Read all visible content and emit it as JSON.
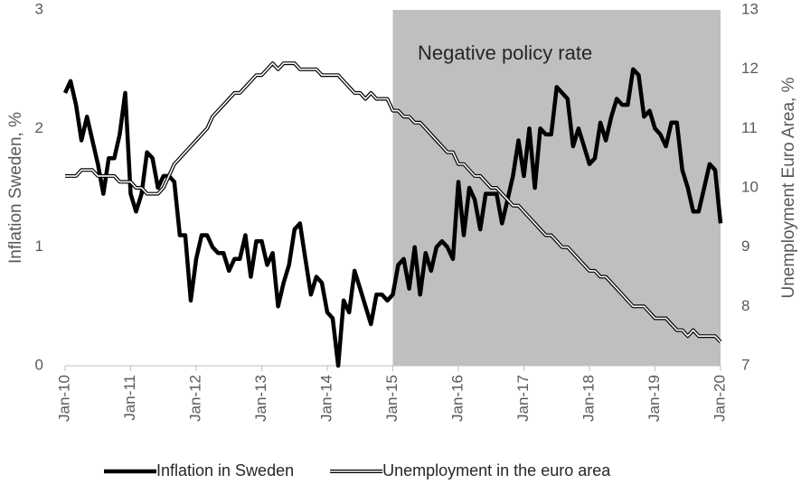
{
  "chart_data": {
    "type": "line",
    "categories": [
      "Jan-10",
      null,
      null,
      null,
      null,
      null,
      null,
      null,
      null,
      null,
      null,
      null,
      "Jan-11",
      null,
      null,
      null,
      null,
      null,
      null,
      null,
      null,
      null,
      null,
      null,
      "Jan-12",
      null,
      null,
      null,
      null,
      null,
      null,
      null,
      null,
      null,
      null,
      null,
      "Jan-13",
      null,
      null,
      null,
      null,
      null,
      null,
      null,
      null,
      null,
      null,
      null,
      "Jan-14",
      null,
      null,
      null,
      null,
      null,
      null,
      null,
      null,
      null,
      null,
      null,
      "Jan-15",
      null,
      null,
      null,
      null,
      null,
      null,
      null,
      null,
      null,
      null,
      null,
      "Jan-16",
      null,
      null,
      null,
      null,
      null,
      null,
      null,
      null,
      null,
      null,
      null,
      "Jan-17",
      null,
      null,
      null,
      null,
      null,
      null,
      null,
      null,
      null,
      null,
      null,
      "Jan-18",
      null,
      null,
      null,
      null,
      null,
      null,
      null,
      null,
      null,
      null,
      null,
      "Jan-19",
      null,
      null,
      null,
      null,
      null,
      null,
      null,
      null,
      null,
      null,
      null,
      "Jan-20"
    ],
    "series": [
      {
        "name": "Inflation in Sweden",
        "color": "#000000",
        "style": "solid",
        "values": [
          2.3,
          2.4,
          2.2,
          1.9,
          2.1,
          1.9,
          1.7,
          1.45,
          1.75,
          1.75,
          1.95,
          2.3,
          1.45,
          1.3,
          1.45,
          1.8,
          1.75,
          1.5,
          1.6,
          1.6,
          1.55,
          1.1,
          1.1,
          0.55,
          0.9,
          1.1,
          1.1,
          1.0,
          0.95,
          0.95,
          0.8,
          0.9,
          0.9,
          1.1,
          0.75,
          1.05,
          1.05,
          0.85,
          0.95,
          0.5,
          0.7,
          0.85,
          1.15,
          1.2,
          0.9,
          0.6,
          0.75,
          0.7,
          0.45,
          0.4,
          0.0,
          0.55,
          0.45,
          0.8,
          0.65,
          0.5,
          0.35,
          0.6,
          0.6,
          0.55,
          0.6,
          0.85,
          0.9,
          0.65,
          1.0,
          0.6,
          0.95,
          0.8,
          1.0,
          1.05,
          1.0,
          0.9,
          1.55,
          1.1,
          1.5,
          1.4,
          1.15,
          1.45,
          1.45,
          1.45,
          1.2,
          1.4,
          1.6,
          1.9,
          1.6,
          2.0,
          1.5,
          2.0,
          1.95,
          1.95,
          2.35,
          2.3,
          2.25,
          1.85,
          2.0,
          1.85,
          1.7,
          1.75,
          2.05,
          1.9,
          2.1,
          2.25,
          2.2,
          2.2,
          2.5,
          2.45,
          2.1,
          2.15,
          2.0,
          1.95,
          1.85,
          2.05,
          2.05,
          1.65,
          1.5,
          1.3,
          1.3,
          1.5,
          1.7,
          1.65,
          1.2
        ]
      },
      {
        "name": "Unemployment in the euro area",
        "color": "#000000",
        "style": "double",
        "axis": "y2",
        "values": [
          10.2,
          10.2,
          10.2,
          10.3,
          10.3,
          10.3,
          10.2,
          10.2,
          10.2,
          10.2,
          10.1,
          10.1,
          10.1,
          10.0,
          10.0,
          9.9,
          9.9,
          9.9,
          10.0,
          10.2,
          10.4,
          10.5,
          10.6,
          10.7,
          10.8,
          10.9,
          11.0,
          11.2,
          11.3,
          11.4,
          11.5,
          11.6,
          11.6,
          11.7,
          11.8,
          11.9,
          11.9,
          12.0,
          12.1,
          12.0,
          12.1,
          12.1,
          12.1,
          12.0,
          12.0,
          12.0,
          12.0,
          11.9,
          11.9,
          11.9,
          11.9,
          11.8,
          11.7,
          11.6,
          11.6,
          11.5,
          11.6,
          11.5,
          11.5,
          11.5,
          11.3,
          11.3,
          11.2,
          11.2,
          11.1,
          11.1,
          11.0,
          10.9,
          10.8,
          10.7,
          10.6,
          10.6,
          10.4,
          10.4,
          10.3,
          10.2,
          10.2,
          10.1,
          10.0,
          10.0,
          9.9,
          9.8,
          9.7,
          9.7,
          9.6,
          9.5,
          9.4,
          9.3,
          9.2,
          9.2,
          9.1,
          9.0,
          9.0,
          8.9,
          8.8,
          8.7,
          8.6,
          8.6,
          8.5,
          8.5,
          8.4,
          8.3,
          8.2,
          8.1,
          8.0,
          8.0,
          8.0,
          7.9,
          7.8,
          7.8,
          7.8,
          7.7,
          7.6,
          7.6,
          7.5,
          7.6,
          7.5,
          7.5,
          7.5,
          7.5,
          7.4
        ]
      }
    ],
    "y_label": "Inflation Sweden, %",
    "y2_label": "Unemployment Euro Area, %",
    "ylim": [
      0,
      3
    ],
    "yticks": [
      0,
      1,
      2,
      3
    ],
    "y2lim": [
      7,
      13
    ],
    "y2ticks": [
      7,
      8,
      9,
      10,
      11,
      12,
      13
    ],
    "grid": false,
    "legend": "bottom",
    "annotations": [
      {
        "text": "Negative policy rate",
        "start": "Jan-15",
        "end": "Jan-20",
        "color": "#bfbfbf"
      }
    ]
  }
}
